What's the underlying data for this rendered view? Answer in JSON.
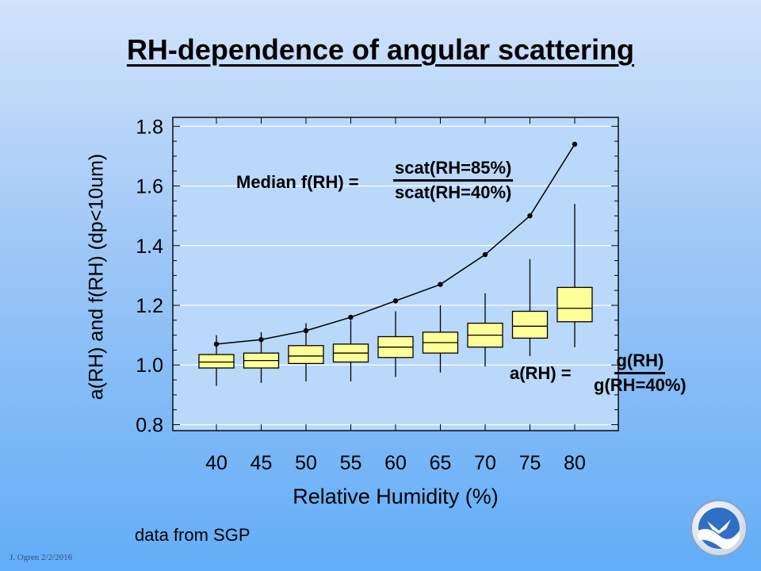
{
  "slide": {
    "title": "RH-dependence of angular scattering",
    "source_note": "data from SGP",
    "author": "J. Ogren  2/2/2016",
    "logo_text": "NOAA"
  },
  "annotations": {
    "median_label": "Median f(RH) =",
    "median_numerator": "scat(RH=85%)",
    "median_denominator": "scat(RH=40%)",
    "a_label": "a(RH) =",
    "a_numerator": "g(RH)",
    "a_denominator": "g(RH=40%)"
  },
  "chart_data": {
    "type": "box",
    "xlabel": "Relative Humidity (%)",
    "ylabel": "a(RH)  and  f(RH)  (dp<10um)",
    "ylim": [
      0.78,
      1.83
    ],
    "yticks": [
      "1.8",
      "1.6",
      "1.4",
      "1.2",
      "1.0",
      "0.8"
    ],
    "ytick_values": [
      1.8,
      1.6,
      1.4,
      1.2,
      1.0,
      0.8
    ],
    "categories": [
      "40",
      "45",
      "50",
      "55",
      "60",
      "65",
      "70",
      "75",
      "80"
    ],
    "grid": true,
    "box_color": "#ffff99",
    "boxes": [
      {
        "rh": 40,
        "whisker_low": 0.93,
        "q1": 0.99,
        "median": 1.01,
        "q3": 1.035,
        "whisker_high": 1.1
      },
      {
        "rh": 45,
        "whisker_low": 0.94,
        "q1": 0.99,
        "median": 1.015,
        "q3": 1.04,
        "whisker_high": 1.11
      },
      {
        "rh": 50,
        "whisker_low": 0.945,
        "q1": 1.005,
        "median": 1.03,
        "q3": 1.065,
        "whisker_high": 1.14
      },
      {
        "rh": 55,
        "whisker_low": 0.945,
        "q1": 1.01,
        "median": 1.04,
        "q3": 1.07,
        "whisker_high": 1.15
      },
      {
        "rh": 60,
        "whisker_low": 0.96,
        "q1": 1.025,
        "median": 1.06,
        "q3": 1.095,
        "whisker_high": 1.18
      },
      {
        "rh": 65,
        "whisker_low": 0.975,
        "q1": 1.04,
        "median": 1.075,
        "q3": 1.11,
        "whisker_high": 1.2
      },
      {
        "rh": 70,
        "whisker_low": 0.995,
        "q1": 1.06,
        "median": 1.1,
        "q3": 1.14,
        "whisker_high": 1.24
      },
      {
        "rh": 75,
        "whisker_low": 1.03,
        "q1": 1.09,
        "median": 1.13,
        "q3": 1.18,
        "whisker_high": 1.355
      },
      {
        "rh": 80,
        "whisker_low": 1.06,
        "q1": 1.145,
        "median": 1.19,
        "q3": 1.26,
        "whisker_high": 1.54
      }
    ],
    "series": [
      {
        "name": "Median f(RH)",
        "x": [
          40,
          45,
          50,
          55,
          60,
          65,
          70,
          75,
          80
        ],
        "values": [
          1.07,
          1.085,
          1.115,
          1.16,
          1.215,
          1.27,
          1.37,
          1.5,
          1.74
        ]
      }
    ]
  }
}
